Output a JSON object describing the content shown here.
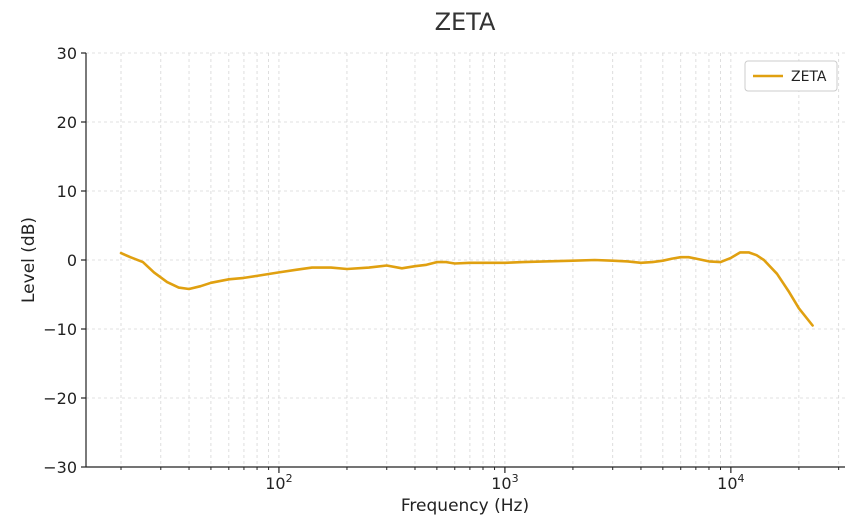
{
  "chart_data": {
    "type": "line",
    "title": "ZETA",
    "xlabel": "Frequency (Hz)",
    "ylabel": "Level (dB)",
    "xscale": "log",
    "xlim": [
      14,
      32000
    ],
    "ylim": [
      -30,
      30
    ],
    "yticks": [
      -30,
      -20,
      -10,
      0,
      10,
      20,
      30
    ],
    "xticks": [
      {
        "value": 100,
        "base": "10",
        "exp": "2"
      },
      {
        "value": 1000,
        "base": "10",
        "exp": "3"
      },
      {
        "value": 10000,
        "base": "10",
        "exp": "4"
      }
    ],
    "grid": true,
    "legend_position": "top-right",
    "series": [
      {
        "name": "ZETA",
        "color": "#E0A010",
        "x": [
          20,
          22,
          25,
          28,
          32,
          36,
          40,
          45,
          50,
          60,
          70,
          80,
          100,
          120,
          140,
          170,
          200,
          250,
          300,
          350,
          400,
          450,
          500,
          550,
          600,
          700,
          800,
          900,
          1000,
          1200,
          1500,
          2000,
          2500,
          3000,
          3500,
          4000,
          4500,
          5000,
          5500,
          6000,
          6500,
          7000,
          8000,
          9000,
          10000,
          11000,
          12000,
          13000,
          14000,
          16000,
          18000,
          20000,
          23000
        ],
        "y": [
          1.0,
          0.4,
          -0.3,
          -1.8,
          -3.2,
          -4.0,
          -4.2,
          -3.8,
          -3.3,
          -2.8,
          -2.6,
          -2.3,
          -1.8,
          -1.4,
          -1.1,
          -1.1,
          -1.3,
          -1.1,
          -0.8,
          -1.2,
          -0.9,
          -0.7,
          -0.3,
          -0.3,
          -0.5,
          -0.4,
          -0.4,
          -0.4,
          -0.4,
          -0.3,
          -0.2,
          -0.1,
          0.0,
          -0.1,
          -0.2,
          -0.4,
          -0.3,
          -0.1,
          0.2,
          0.4,
          0.4,
          0.2,
          -0.2,
          -0.3,
          0.3,
          1.1,
          1.1,
          0.7,
          0.0,
          -2.0,
          -4.5,
          -7.0,
          -9.5
        ]
      }
    ]
  }
}
